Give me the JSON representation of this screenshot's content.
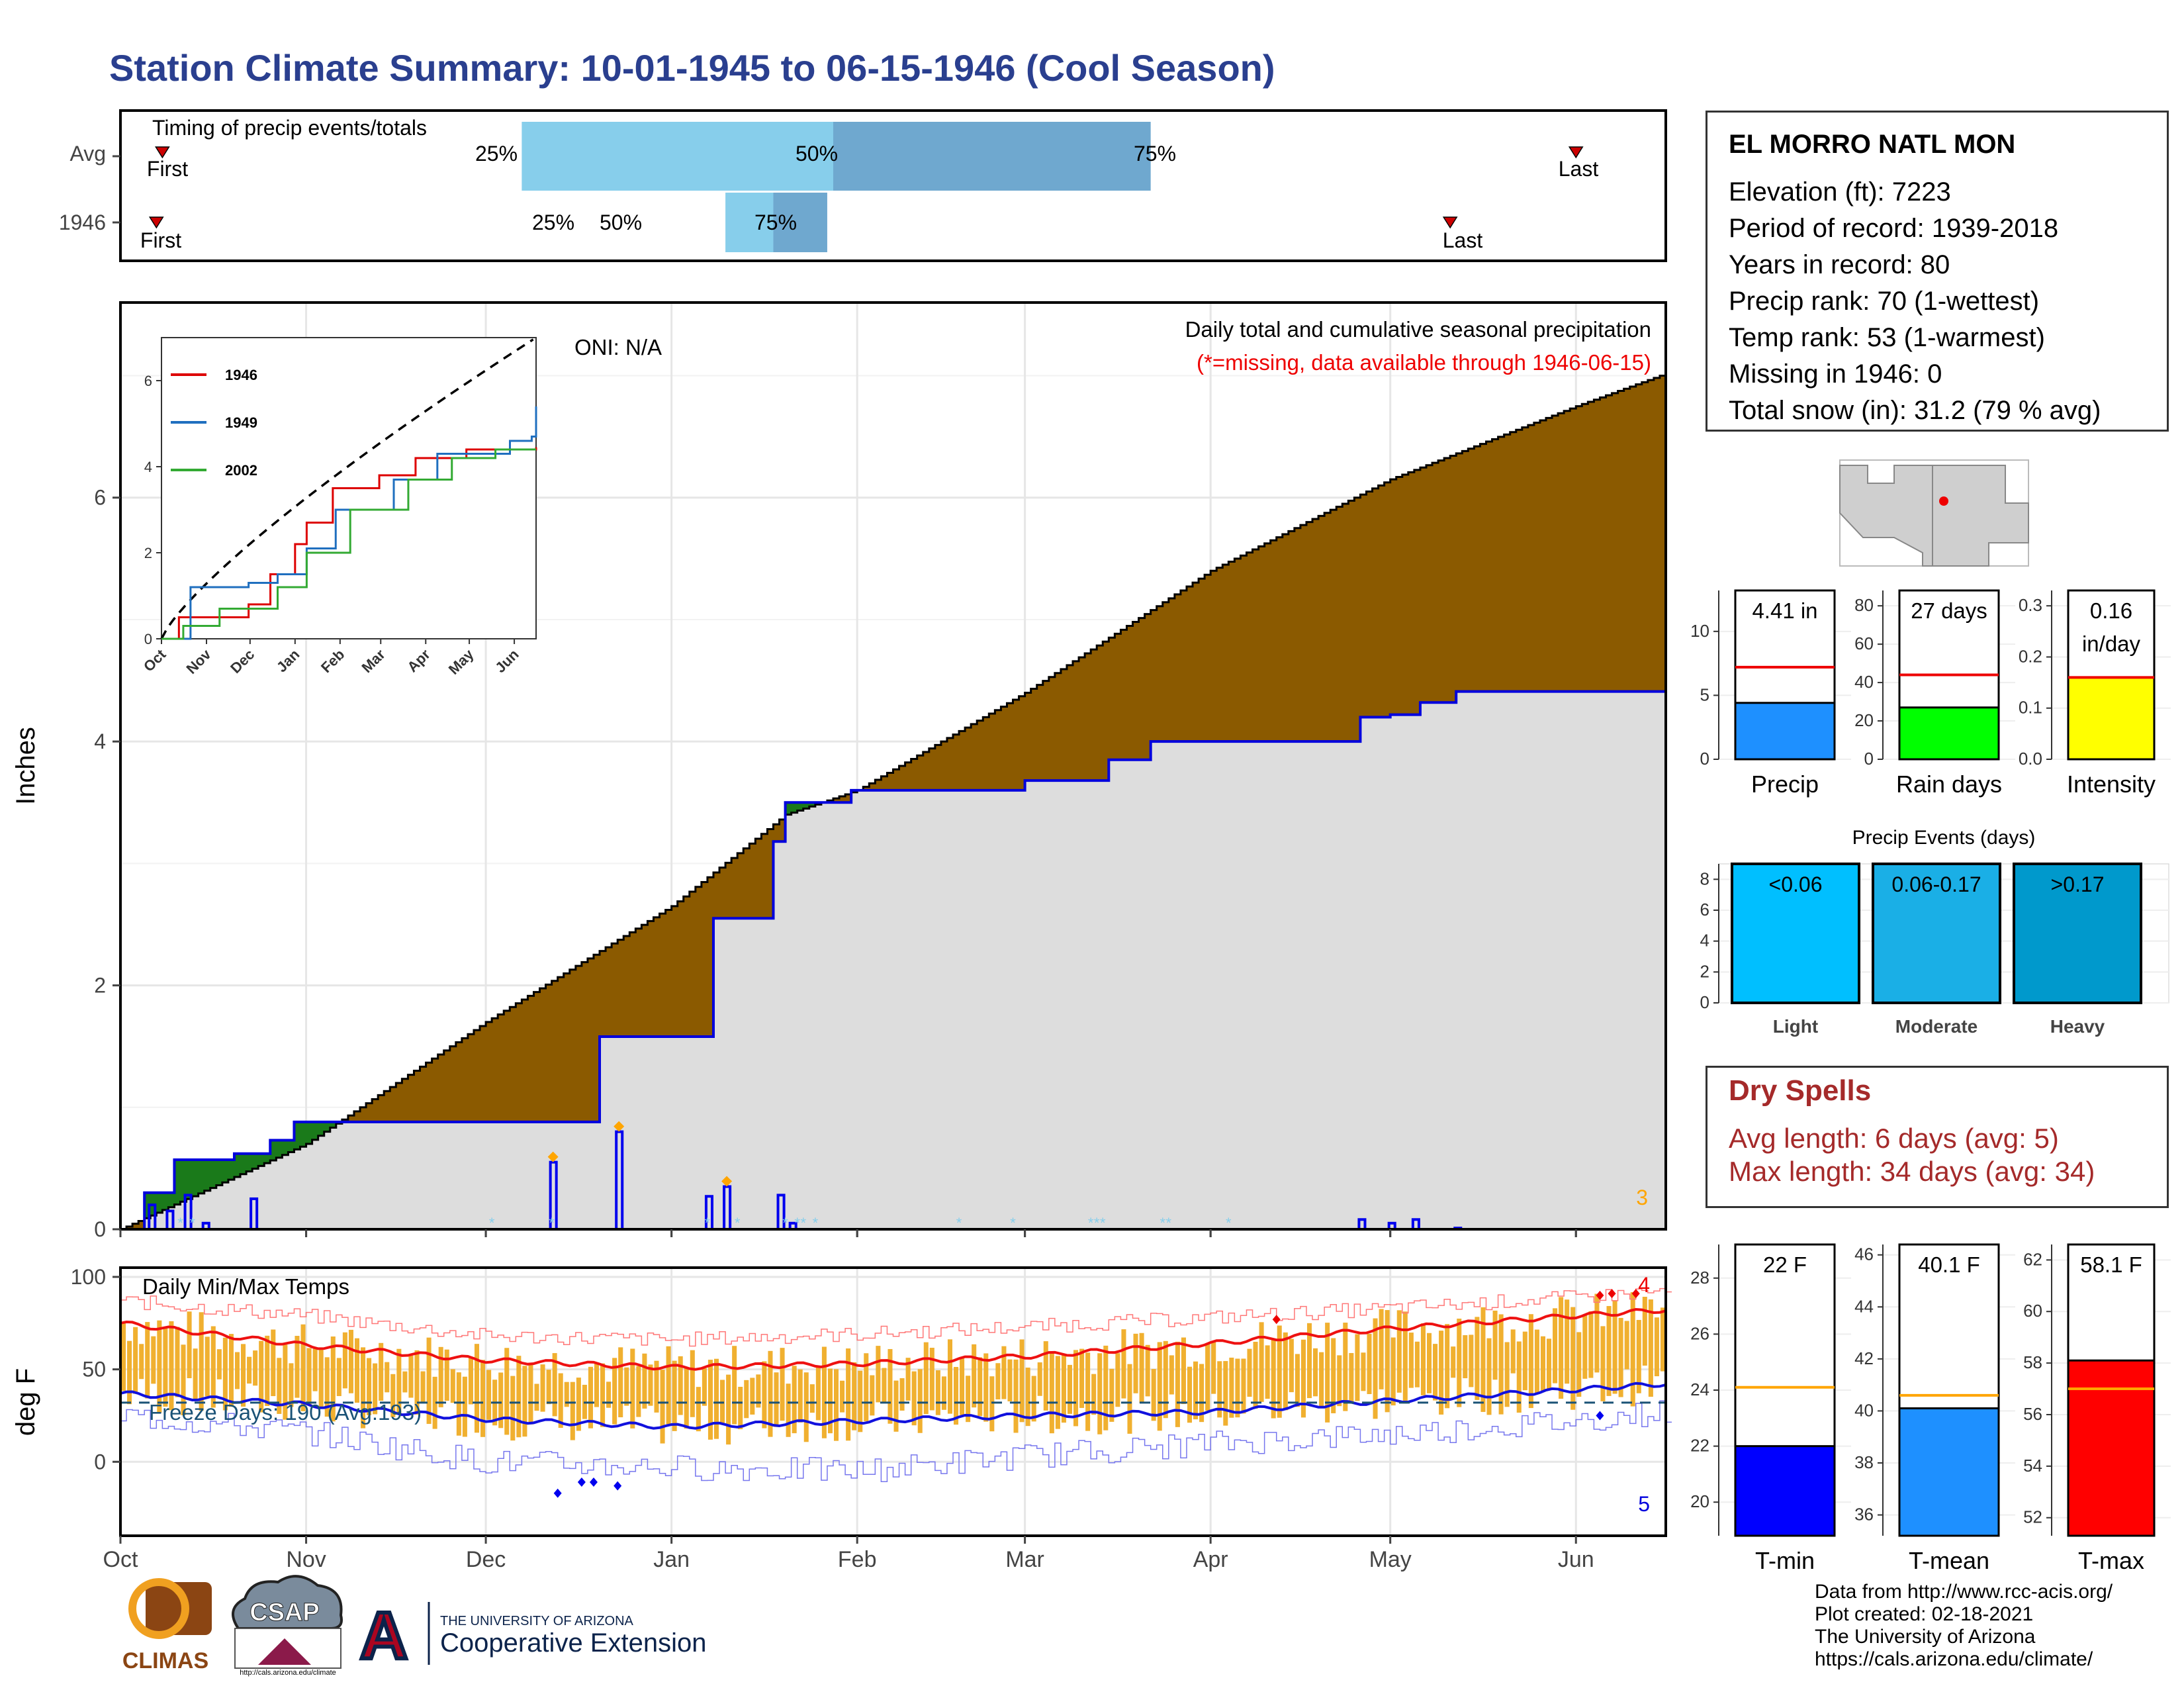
{
  "title": "Station Climate Summary: 10-01-1945 to 06-15-1946 (Cool Season)",
  "timing": {
    "title": "Timing of precip events/totals",
    "rows": [
      {
        "label": "Avg",
        "first": "First",
        "last": "Last",
        "q25": "25%",
        "q50": "50%",
        "q75": "75%"
      },
      {
        "label": "1946",
        "first": "First",
        "last": "Last",
        "q25": "25%",
        "q50": "50%",
        "q75": "75%"
      }
    ],
    "colors": {
      "light": "#87ceeb",
      "dark": "#6fa8cf",
      "marker": "#cc0000"
    }
  },
  "main": {
    "ylabel": "Inches",
    "title": "Daily total and cumulative seasonal precipitation",
    "note": "(*=missing, data available through 1946-06-15)",
    "oni": "ONI: N/A",
    "corner_count": "3",
    "yticks": [
      "0",
      "2",
      "4",
      "6"
    ],
    "months": [
      "Oct",
      "Nov",
      "Dec",
      "Jan",
      "Feb",
      "Mar",
      "Apr",
      "May",
      "Jun"
    ],
    "colors": {
      "avg_fill": "#8b5a00",
      "surplus_fill": "#1a7a1a",
      "obs_fill": "#dddddd",
      "obs_line": "#0000dd",
      "bars": "#0000ee",
      "missing": "#87ceeb",
      "diamond": "#ffa500"
    }
  },
  "inset": {
    "legend": [
      "1946",
      "1949",
      "2002"
    ],
    "legend_colors": [
      "#dd0000",
      "#1f6fbf",
      "#33aa33"
    ],
    "yticks": [
      "0",
      "2",
      "4",
      "6"
    ],
    "months": [
      "Oct",
      "Nov",
      "Dec",
      "Jan",
      "Feb",
      "Mar",
      "Apr",
      "May",
      "Jun"
    ]
  },
  "temp": {
    "ylabel": "deg F",
    "title": "Daily Min/Max Temps",
    "freeze": "Freeze Days: 190 (Avg:193)",
    "yticks": [
      "100",
      "50",
      "0"
    ],
    "count_hi": "4",
    "count_lo": "5",
    "months": [
      "Oct",
      "Nov",
      "Dec",
      "Jan",
      "Feb",
      "Mar",
      "Apr",
      "May",
      "Jun"
    ],
    "colors": {
      "bars": "#f0b030",
      "max_line": "#ee1111",
      "min_line": "#1111dd",
      "freeze_line": "#1a5276"
    }
  },
  "station": {
    "name": "EL MORRO NATL MON",
    "lines": [
      "Elevation (ft): 7223",
      "Period of record: 1939-2018",
      "Years in record: 80",
      "Precip rank: 70 (1-wettest)",
      "Temp rank: 53 (1-warmest)",
      "Missing in 1946: 0",
      "Total snow (in): 31.2 (79 % avg)"
    ]
  },
  "mini_precip": [
    {
      "label": "Precip",
      "value_label": "4.41 in",
      "yticks": [
        "0",
        "5",
        "10"
      ],
      "color": "#1e90ff"
    },
    {
      "label": "Rain days",
      "value_label": "27 days",
      "yticks": [
        "0",
        "20",
        "40",
        "60",
        "80"
      ],
      "color": "#00ff00"
    },
    {
      "label": "Intensity",
      "value_label": "0.16",
      "value_label2": "in/day",
      "yticks": [
        "0.0",
        "0.1",
        "0.2",
        "0.3"
      ],
      "color": "#ffff00"
    }
  ],
  "events": {
    "title": "Precip Events (days)",
    "yticks": [
      "0",
      "2",
      "4",
      "6",
      "8"
    ],
    "bars": [
      {
        "label": "Light",
        "range": "<0.06",
        "color": "#00bfff"
      },
      {
        "label": "Moderate",
        "range": "0.06-0.17",
        "color": "#1aafe6"
      },
      {
        "label": "Heavy",
        "range": ">0.17",
        "color": "#0099cc"
      }
    ]
  },
  "dry": {
    "title": "Dry Spells",
    "avg": "Avg length: 6 days (avg: 5)",
    "max": "Max length: 34 days (avg: 34)"
  },
  "mini_temp": [
    {
      "label": "T-min",
      "value_label": "22 F",
      "yticks": [
        "20",
        "22",
        "24",
        "26",
        "28"
      ],
      "color": "#0000ff"
    },
    {
      "label": "T-mean",
      "value_label": "40.1 F",
      "yticks": [
        "36",
        "38",
        "40",
        "42",
        "44",
        "46"
      ],
      "color": "#1e90ff"
    },
    {
      "label": "T-max",
      "value_label": "58.1 F",
      "yticks": [
        "52",
        "54",
        "56",
        "58",
        "60",
        "62"
      ],
      "color": "#ff0000"
    }
  ],
  "credits": [
    "Data from http://www.rcc-acis.org/",
    "Plot created: 02-18-2021",
    "The University of Arizona",
    "https://cals.arizona.edu/climate/"
  ],
  "logos": {
    "climas": "CLIMAS",
    "csap": "CSAP",
    "csap_url": "http://cals.arizona.edu/climate",
    "ua_small": "THE UNIVERSITY OF ARIZONA",
    "ua_big": "Cooperative Extension"
  },
  "chart_data": [
    {
      "type": "bar",
      "title": "Timing of precip events/totals",
      "categories": [
        "Avg",
        "1946"
      ],
      "series": [
        {
          "name": "25%",
          "values": [
            "1945-12-07",
            "1946-01-10"
          ]
        },
        {
          "name": "50%",
          "values": [
            "1946-01-28",
            "1946-01-18"
          ]
        },
        {
          "name": "75%",
          "values": [
            "1946-03-22",
            "1946-01-27"
          ]
        },
        {
          "name": "First",
          "values": [
            "1945-10-08",
            "1945-10-07"
          ]
        },
        {
          "name": "Last",
          "values": [
            "1946-06-01",
            "1946-05-11"
          ]
        }
      ]
    },
    {
      "type": "area",
      "title": "Daily total and cumulative seasonal precipitation",
      "ylabel": "Inches",
      "x_range": [
        "1945-10-01",
        "1946-06-15"
      ],
      "ylim": [
        0,
        7.6
      ],
      "series": [
        {
          "name": "",
          "x": [
            "1945-10-01",
            "1945-11-01",
            "1945-12-01",
            "1946-01-01",
            "1946-01-20",
            "1946-02-01",
            "1946-03-01",
            "1946-04-01",
            "1946-05-01",
            "1946-06-01",
            "1946-06-15"
          ],
          "values": [
            0.0,
            0.7,
            1.7,
            2.65,
            3.4,
            3.6,
            4.4,
            5.4,
            6.15,
            6.75,
            7.0
          ]
        },
        {
          "name": "",
          "x": [
            "1945-10-01",
            "1945-10-05",
            "1945-10-10",
            "1945-10-20",
            "1945-10-26",
            "1945-10-30",
            "1945-12-12",
            "1945-12-20",
            "1946-01-08",
            "1946-01-18",
            "1946-01-20",
            "1946-01-31",
            "1946-03-01",
            "1946-03-15",
            "1946-03-22",
            "1946-04-22",
            "1946-04-26",
            "1946-05-01",
            "1946-05-06",
            "1946-05-12",
            "1946-06-15"
          ],
          "values": [
            0.0,
            0.3,
            0.57,
            0.62,
            0.73,
            0.88,
            0.88,
            1.58,
            2.55,
            3.18,
            3.5,
            3.6,
            3.68,
            3.85,
            4.0,
            4.0,
            4.2,
            4.22,
            4.32,
            4.41,
            4.41
          ]
        },
        {
          "name": "",
          "x": [
            "1945-10-06",
            "1945-10-09",
            "1945-10-12",
            "1945-10-15",
            "1945-10-23",
            "1945-12-12",
            "1945-12-23",
            "1946-01-07",
            "1946-01-10",
            "1946-01-19",
            "1946-01-21",
            "1946-04-26",
            "1946-05-01",
            "1946-05-05",
            "1946-05-12"
          ],
          "values": [
            0.2,
            0.15,
            0.28,
            0.05,
            0.25,
            0.55,
            0.8,
            0.27,
            0.35,
            0.28,
            0.05,
            0.08,
            0.05,
            0.08,
            0.01
          ]
        }
      ]
    },
    {
      "type": "line",
      "title": "Daily Min/Max Temps",
      "ylabel": "deg F",
      "ylim": [
        -40,
        105
      ],
      "x": [
        "1945-10-01",
        "1945-11-01",
        "1945-12-01",
        "1946-01-01",
        "1946-02-01",
        "1946-03-01",
        "1946-04-01",
        "1946-05-01",
        "1946-06-01",
        "1946-06-15"
      ],
      "series": [
        {
          "name": "",
          "values": [
            75,
            63,
            55,
            51,
            53,
            57,
            64,
            72,
            79,
            82
          ]
        },
        {
          "name": "",
          "values": [
            37,
            31,
            23,
            19,
            22,
            25,
            27,
            33,
            39,
            42
          ]
        },
        {
          "name": "",
          "values": [
            87,
            79,
            68,
            66,
            69,
            73,
            78,
            83,
            89,
            92
          ]
        },
        {
          "name": "",
          "values": [
            25,
            16,
            0,
            -3,
            -5,
            3,
            10,
            15,
            22,
            27
          ]
        }
      ]
    },
    {
      "type": "bar",
      "categories": [
        "Precip",
        "Rain days",
        "Intensity"
      ],
      "series": [
        {
          "name": "1946",
          "values": [
            4.41,
            27,
            0.16
          ]
        },
        {
          "name": "Avg",
          "values": [
            7.2,
            44,
            0.16
          ]
        }
      ]
    },
    {
      "type": "bar",
      "title": "Precip Events (days)",
      "categories": [
        "Light",
        "Moderate",
        "Heavy"
      ],
      "values": [
        9,
        9,
        9
      ],
      "ylim": [
        0,
        9
      ]
    },
    {
      "type": "bar",
      "categories": [
        "T-min",
        "T-mean",
        "T-max"
      ],
      "series": [
        {
          "name": "1946",
          "values": [
            22,
            40.1,
            58.1
          ]
        },
        {
          "name": "Avg",
          "values": [
            24.1,
            40.6,
            57
          ]
        }
      ]
    }
  ]
}
